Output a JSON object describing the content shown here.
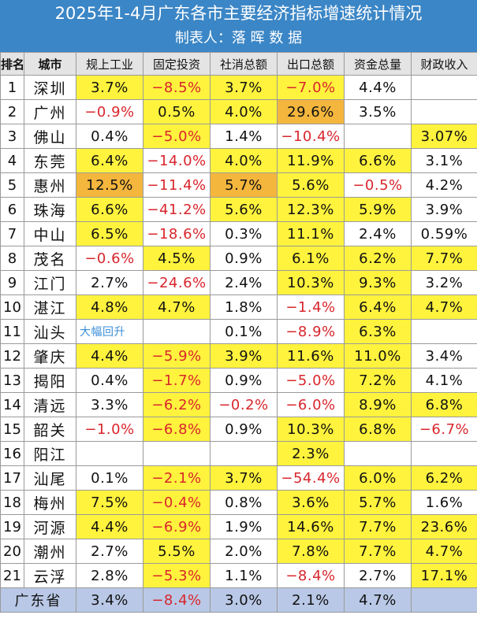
{
  "title": "2025年1-4月广东各市主要经济指标增速统计情况",
  "subtitle": "制表人：落 晖 数 据",
  "columns": [
    "排名",
    "城市",
    "规上工业",
    "固定投资",
    "社消总额",
    "出口总额",
    "资金总量",
    "财政收入"
  ],
  "rows": [
    {
      "rank": "1",
      "city": "深圳",
      "cells": [
        {
          "v": "3.7%",
          "hl": "y"
        },
        {
          "v": "−8.5%",
          "hl": "y"
        },
        {
          "v": "3.7%",
          "hl": "y"
        },
        {
          "v": "−7.0%",
          "hl": "y"
        },
        {
          "v": "4.4%",
          "hl": ""
        },
        {
          "v": "",
          "hl": ""
        }
      ]
    },
    {
      "rank": "2",
      "city": "广州",
      "cells": [
        {
          "v": "−0.9%",
          "hl": ""
        },
        {
          "v": "0.5%",
          "hl": "y"
        },
        {
          "v": "4.0%",
          "hl": "y"
        },
        {
          "v": "29.6%",
          "hl": "o"
        },
        {
          "v": "3.5%",
          "hl": ""
        },
        {
          "v": "",
          "hl": ""
        }
      ]
    },
    {
      "rank": "3",
      "city": "佛山",
      "cells": [
        {
          "v": "0.4%",
          "hl": ""
        },
        {
          "v": "−5.0%",
          "hl": "y"
        },
        {
          "v": "1.4%",
          "hl": ""
        },
        {
          "v": "−10.4%",
          "hl": ""
        },
        {
          "v": "",
          "hl": ""
        },
        {
          "v": "3.07%",
          "hl": "y"
        }
      ]
    },
    {
      "rank": "4",
      "city": "东莞",
      "cells": [
        {
          "v": "6.4%",
          "hl": "y"
        },
        {
          "v": "−14.0%",
          "hl": ""
        },
        {
          "v": "4.0%",
          "hl": "y"
        },
        {
          "v": "11.9%",
          "hl": "y"
        },
        {
          "v": "6.6%",
          "hl": "y"
        },
        {
          "v": "3.1%",
          "hl": ""
        }
      ]
    },
    {
      "rank": "5",
      "city": "惠州",
      "cells": [
        {
          "v": "12.5%",
          "hl": "o"
        },
        {
          "v": "−11.4%",
          "hl": ""
        },
        {
          "v": "5.7%",
          "hl": "o"
        },
        {
          "v": "5.6%",
          "hl": "y"
        },
        {
          "v": "−0.5%",
          "hl": ""
        },
        {
          "v": "4.2%",
          "hl": ""
        }
      ]
    },
    {
      "rank": "6",
      "city": "珠海",
      "cells": [
        {
          "v": "6.6%",
          "hl": "y"
        },
        {
          "v": "−41.2%",
          "hl": ""
        },
        {
          "v": "5.6%",
          "hl": "y"
        },
        {
          "v": "12.3%",
          "hl": "y"
        },
        {
          "v": "5.9%",
          "hl": "y"
        },
        {
          "v": "3.9%",
          "hl": ""
        }
      ]
    },
    {
      "rank": "7",
      "city": "中山",
      "cells": [
        {
          "v": "6.5%",
          "hl": "y"
        },
        {
          "v": "−18.6%",
          "hl": ""
        },
        {
          "v": "0.3%",
          "hl": ""
        },
        {
          "v": "11.1%",
          "hl": "y"
        },
        {
          "v": "2.4%",
          "hl": ""
        },
        {
          "v": "0.59%",
          "hl": ""
        }
      ]
    },
    {
      "rank": "8",
      "city": "茂名",
      "cells": [
        {
          "v": "−0.6%",
          "hl": ""
        },
        {
          "v": "4.5%",
          "hl": "y"
        },
        {
          "v": "0.9%",
          "hl": ""
        },
        {
          "v": "6.1%",
          "hl": "y"
        },
        {
          "v": "6.2%",
          "hl": "y"
        },
        {
          "v": "7.7%",
          "hl": "y"
        }
      ]
    },
    {
      "rank": "9",
      "city": "江门",
      "cells": [
        {
          "v": "2.7%",
          "hl": ""
        },
        {
          "v": "−24.6%",
          "hl": ""
        },
        {
          "v": "2.4%",
          "hl": ""
        },
        {
          "v": "10.3%",
          "hl": "y"
        },
        {
          "v": "9.3%",
          "hl": "y"
        },
        {
          "v": "3.2%",
          "hl": ""
        }
      ]
    },
    {
      "rank": "10",
      "city": "湛江",
      "cells": [
        {
          "v": "4.8%",
          "hl": "y"
        },
        {
          "v": "4.7%",
          "hl": "y"
        },
        {
          "v": "1.8%",
          "hl": ""
        },
        {
          "v": "−1.4%",
          "hl": ""
        },
        {
          "v": "6.4%",
          "hl": "y"
        },
        {
          "v": "4.7%",
          "hl": "y"
        }
      ]
    },
    {
      "rank": "11",
      "city": "汕头",
      "cells": [
        {
          "v": "大幅回升",
          "hl": "",
          "note": true
        },
        {
          "v": "",
          "hl": ""
        },
        {
          "v": "0.1%",
          "hl": ""
        },
        {
          "v": "−8.9%",
          "hl": ""
        },
        {
          "v": "6.3%",
          "hl": "y"
        },
        {
          "v": "",
          "hl": ""
        }
      ]
    },
    {
      "rank": "12",
      "city": "肇庆",
      "cells": [
        {
          "v": "4.4%",
          "hl": "y"
        },
        {
          "v": "−5.9%",
          "hl": "y"
        },
        {
          "v": "3.9%",
          "hl": "y"
        },
        {
          "v": "11.6%",
          "hl": "y"
        },
        {
          "v": "11.0%",
          "hl": "y"
        },
        {
          "v": "3.4%",
          "hl": ""
        }
      ]
    },
    {
      "rank": "13",
      "city": "揭阳",
      "cells": [
        {
          "v": "0.4%",
          "hl": ""
        },
        {
          "v": "−1.7%",
          "hl": "y"
        },
        {
          "v": "0.9%",
          "hl": ""
        },
        {
          "v": "−5.0%",
          "hl": ""
        },
        {
          "v": "7.2%",
          "hl": "y"
        },
        {
          "v": "4.1%",
          "hl": ""
        }
      ]
    },
    {
      "rank": "14",
      "city": "清远",
      "cells": [
        {
          "v": "3.3%",
          "hl": ""
        },
        {
          "v": "−6.2%",
          "hl": "y"
        },
        {
          "v": "−0.2%",
          "hl": ""
        },
        {
          "v": "−6.0%",
          "hl": ""
        },
        {
          "v": "8.9%",
          "hl": "y"
        },
        {
          "v": "6.8%",
          "hl": "y"
        }
      ]
    },
    {
      "rank": "15",
      "city": "韶关",
      "cells": [
        {
          "v": "−1.0%",
          "hl": ""
        },
        {
          "v": "−6.8%",
          "hl": "y"
        },
        {
          "v": "0.9%",
          "hl": ""
        },
        {
          "v": "10.3%",
          "hl": "y"
        },
        {
          "v": "6.8%",
          "hl": "y"
        },
        {
          "v": "−6.7%",
          "hl": ""
        }
      ]
    },
    {
      "rank": "16",
      "city": "阳江",
      "cells": [
        {
          "v": "",
          "hl": ""
        },
        {
          "v": "",
          "hl": ""
        },
        {
          "v": "",
          "hl": ""
        },
        {
          "v": "2.3%",
          "hl": "y"
        },
        {
          "v": "",
          "hl": ""
        },
        {
          "v": "",
          "hl": ""
        }
      ]
    },
    {
      "rank": "17",
      "city": "汕尾",
      "cells": [
        {
          "v": "0.1%",
          "hl": ""
        },
        {
          "v": "−2.1%",
          "hl": "y"
        },
        {
          "v": "3.7%",
          "hl": "y"
        },
        {
          "v": "−54.4%",
          "hl": ""
        },
        {
          "v": "6.0%",
          "hl": "y"
        },
        {
          "v": "6.2%",
          "hl": "y"
        }
      ]
    },
    {
      "rank": "18",
      "city": "梅州",
      "cells": [
        {
          "v": "7.5%",
          "hl": "y"
        },
        {
          "v": "−0.4%",
          "hl": "y"
        },
        {
          "v": "0.8%",
          "hl": ""
        },
        {
          "v": "3.6%",
          "hl": "y"
        },
        {
          "v": "5.7%",
          "hl": "y"
        },
        {
          "v": "1.6%",
          "hl": ""
        }
      ]
    },
    {
      "rank": "19",
      "city": "河源",
      "cells": [
        {
          "v": "4.4%",
          "hl": "y"
        },
        {
          "v": "−6.9%",
          "hl": "y"
        },
        {
          "v": "1.9%",
          "hl": ""
        },
        {
          "v": "14.6%",
          "hl": "y"
        },
        {
          "v": "7.7%",
          "hl": "y"
        },
        {
          "v": "23.6%",
          "hl": "y"
        }
      ]
    },
    {
      "rank": "20",
      "city": "潮州",
      "cells": [
        {
          "v": "2.7%",
          "hl": ""
        },
        {
          "v": "5.5%",
          "hl": "y"
        },
        {
          "v": "2.0%",
          "hl": ""
        },
        {
          "v": "7.8%",
          "hl": "y"
        },
        {
          "v": "7.7%",
          "hl": "y"
        },
        {
          "v": "4.7%",
          "hl": "y"
        }
      ]
    },
    {
      "rank": "21",
      "city": "云浮",
      "cells": [
        {
          "v": "2.8%",
          "hl": ""
        },
        {
          "v": "−5.3%",
          "hl": "y"
        },
        {
          "v": "1.1%",
          "hl": ""
        },
        {
          "v": "−8.4%",
          "hl": ""
        },
        {
          "v": "2.7%",
          "hl": ""
        },
        {
          "v": "17.1%",
          "hl": "y"
        }
      ]
    }
  ],
  "total": {
    "city": "广东省",
    "cells": [
      "3.4%",
      "−8.4%",
      "3.0%",
      "2.1%",
      "4.7%",
      ""
    ]
  },
  "colors": {
    "header_blue": "#3b86c6",
    "highlight_yellow": "#fff33d",
    "highlight_orange": "#f4b63d",
    "negative_red": "#d8262c",
    "total_row": "#b9c8e6",
    "note_blue": "#3b8ed8"
  }
}
